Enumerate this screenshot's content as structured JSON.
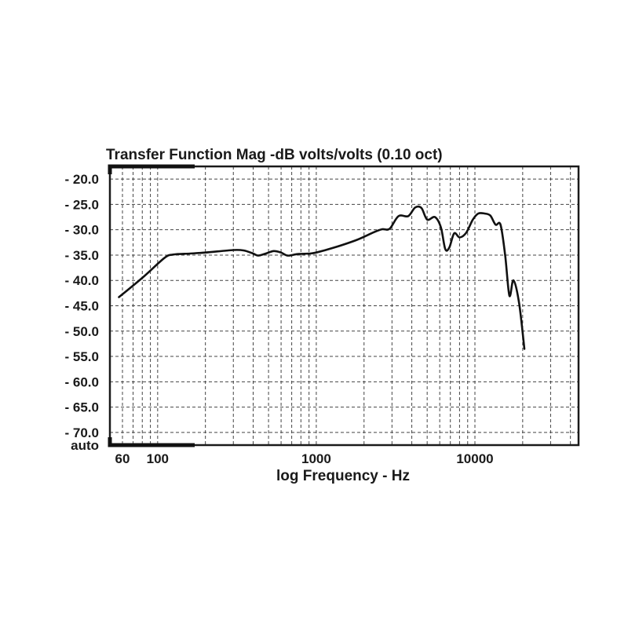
{
  "chart_data": {
    "type": "line",
    "title": "Transfer Function Mag -dB volts/volts (0.10 oct)",
    "xlabel": "log Frequency - Hz",
    "ylabel": "",
    "xscale": "log",
    "xlim": [
      50,
      45000
    ],
    "ylim": [
      -72.5,
      -17.5
    ],
    "grid": true,
    "x_tick_labels": [
      {
        "value": 60,
        "label": "60"
      },
      {
        "value": 100,
        "label": "100"
      },
      {
        "value": 1000,
        "label": "1000"
      },
      {
        "value": 10000,
        "label": "10000"
      }
    ],
    "y_tick_labels": [
      {
        "value": -20,
        "label": "- 20.0"
      },
      {
        "value": -25,
        "label": "- 25.0"
      },
      {
        "value": -30,
        "label": "- 30.0"
      },
      {
        "value": -35,
        "label": "- 35.0"
      },
      {
        "value": -40,
        "label": "- 40.0"
      },
      {
        "value": -45,
        "label": "- 45.0"
      },
      {
        "value": -50,
        "label": "- 50.0"
      },
      {
        "value": -55,
        "label": "- 55.0"
      },
      {
        "value": -60,
        "label": "- 60.0"
      },
      {
        "value": -65,
        "label": "- 65.0"
      },
      {
        "value": -70,
        "label": "- 70.0"
      },
      {
        "value": null,
        "label": "auto"
      }
    ],
    "series": [
      {
        "x": [
          57,
          80,
          110,
          125,
          160,
          200,
          300,
          350,
          400,
          430,
          480,
          540,
          600,
          660,
          760,
          900,
          1000,
          1300,
          1800,
          2300,
          2600,
          2900,
          3300,
          3800,
          4200,
          4600,
          5000,
          5600,
          6100,
          6500,
          6900,
          7400,
          8000,
          8800,
          9700,
          10500,
          11500,
          12500,
          13500,
          14500,
          15500,
          16500,
          17500,
          19000,
          20500
        ],
        "y": [
          -43.3,
          -39.5,
          -35.6,
          -34.9,
          -34.7,
          -34.5,
          -34.0,
          -34.1,
          -34.7,
          -35.1,
          -34.7,
          -34.2,
          -34.5,
          -35.1,
          -34.8,
          -34.7,
          -34.5,
          -33.5,
          -32.0,
          -30.5,
          -29.9,
          -29.8,
          -27.3,
          -27.3,
          -25.6,
          -25.7,
          -28.0,
          -27.5,
          -29.5,
          -33.8,
          -33.5,
          -30.7,
          -31.5,
          -30.6,
          -28.0,
          -26.8,
          -26.8,
          -27.2,
          -29.0,
          -29.0,
          -35.0,
          -43.0,
          -40.0,
          -44.5,
          -53.5
        ]
      }
    ]
  }
}
